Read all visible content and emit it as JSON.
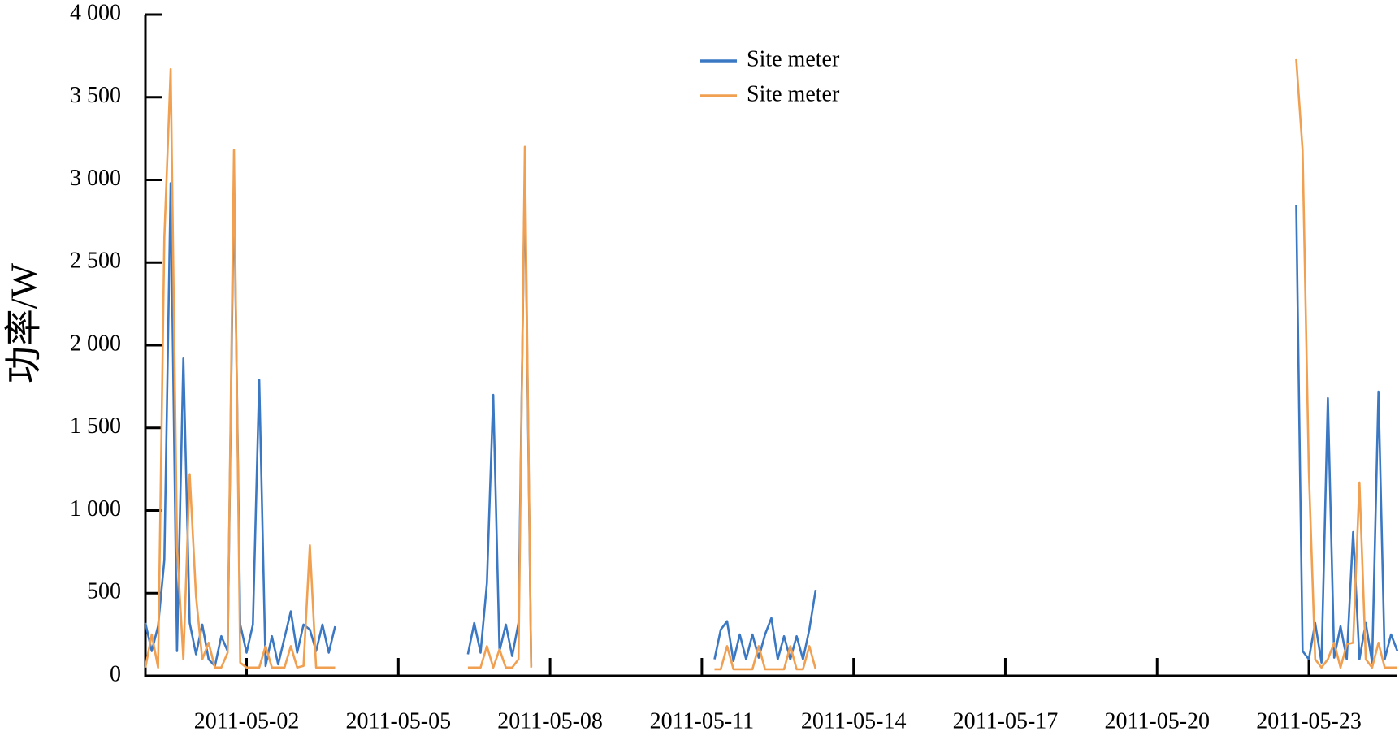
{
  "chart_data": {
    "type": "line",
    "y_label": "功率/W",
    "x": [
      "2011-04-30T00:00",
      "2011-04-30T03:00",
      "2011-04-30T06:00",
      "2011-04-30T09:00",
      "2011-04-30T12:00",
      "2011-04-30T15:00",
      "2011-04-30T18:00",
      "2011-04-30T21:00",
      "2011-05-01T00:00",
      "2011-05-01T03:00",
      "2011-05-01T06:00",
      "2011-05-01T09:00",
      "2011-05-01T12:00",
      "2011-05-01T15:00",
      "2011-05-01T18:00",
      "2011-05-01T21:00",
      "2011-05-02T00:00",
      "2011-05-02T03:00",
      "2011-05-02T06:00",
      "2011-05-02T09:00",
      "2011-05-02T12:00",
      "2011-05-02T15:00",
      "2011-05-02T18:00",
      "2011-05-02T21:00",
      "2011-05-03T00:00",
      "2011-05-03T03:00",
      "2011-05-03T06:00",
      "2011-05-03T09:00",
      "2011-05-03T12:00",
      "2011-05-03T15:00",
      "2011-05-03T18:00",
      "2011-05-05T00:00",
      "2011-05-06T09:00",
      "2011-05-06T12:00",
      "2011-05-06T15:00",
      "2011-05-06T18:00",
      "2011-05-06T21:00",
      "2011-05-07T00:00",
      "2011-05-07T03:00",
      "2011-05-07T06:00",
      "2011-05-07T09:00",
      "2011-05-07T12:00",
      "2011-05-07T15:00",
      "2011-05-09T12:00",
      "2011-05-11T06:00",
      "2011-05-11T09:00",
      "2011-05-11T12:00",
      "2011-05-11T15:00",
      "2011-05-11T18:00",
      "2011-05-11T21:00",
      "2011-05-12T00:00",
      "2011-05-12T03:00",
      "2011-05-12T06:00",
      "2011-05-12T09:00",
      "2011-05-12T12:00",
      "2011-05-12T15:00",
      "2011-05-12T18:00",
      "2011-05-12T21:00",
      "2011-05-13T00:00",
      "2011-05-13T03:00",
      "2011-05-13T06:00",
      "2011-05-18T00:00",
      "2011-05-22T18:00",
      "2011-05-22T21:00",
      "2011-05-23T00:00",
      "2011-05-23T03:00",
      "2011-05-23T06:00",
      "2011-05-23T09:00",
      "2011-05-23T12:00",
      "2011-05-23T15:00",
      "2011-05-23T18:00",
      "2011-05-23T21:00",
      "2011-05-24T00:00",
      "2011-05-24T03:00",
      "2011-05-24T06:00",
      "2011-05-24T09:00",
      "2011-05-24T12:00",
      "2011-05-24T15:00",
      "2011-05-24T18:00"
    ],
    "series": [
      {
        "name": "Site meter",
        "color": "#3b78c4",
        "values": [
          320,
          150,
          300,
          700,
          2980,
          150,
          1920,
          320,
          130,
          310,
          100,
          60,
          240,
          150,
          3000,
          310,
          140,
          310,
          1790,
          60,
          240,
          70,
          230,
          390,
          140,
          310,
          280,
          150,
          310,
          140,
          300,
          null,
          130,
          320,
          140,
          560,
          1700,
          150,
          310,
          120,
          320,
          3050,
          60,
          null,
          100,
          280,
          330,
          90,
          250,
          100,
          250,
          110,
          250,
          350,
          100,
          240,
          100,
          240,
          100,
          280,
          520,
          null,
          2850,
          150,
          100,
          320,
          80,
          1680,
          110,
          300,
          100,
          870,
          100,
          320,
          80,
          1720,
          100,
          250,
          150
        ]
      },
      {
        "name": "Site meter",
        "color": "#f0a050",
        "values": [
          50,
          250,
          50,
          2650,
          3670,
          780,
          100,
          1220,
          480,
          100,
          200,
          50,
          50,
          140,
          3180,
          80,
          50,
          50,
          50,
          180,
          50,
          50,
          50,
          180,
          50,
          60,
          790,
          50,
          50,
          50,
          50,
          null,
          50,
          50,
          50,
          180,
          50,
          160,
          50,
          50,
          100,
          3200,
          50,
          null,
          40,
          40,
          180,
          40,
          40,
          40,
          40,
          180,
          40,
          40,
          40,
          40,
          180,
          40,
          40,
          180,
          40,
          null,
          3730,
          3180,
          1240,
          100,
          50,
          100,
          200,
          50,
          190,
          200,
          1170,
          100,
          50,
          200,
          50,
          50,
          50
        ]
      }
    ],
    "xlim": [
      "2011-04-30T00:00",
      "2011-05-24T18:00"
    ],
    "xticks": [
      "2011-05-02",
      "2011-05-05",
      "2011-05-08",
      "2011-05-11",
      "2011-05-14",
      "2011-05-17",
      "2011-05-20",
      "2011-05-23"
    ],
    "ylim": [
      0,
      4000
    ],
    "yticks": [
      0,
      500,
      {
        "value": 1000,
        "label": "1 000"
      },
      {
        "value": 1500,
        "label": "1 500"
      },
      {
        "value": 2000,
        "label": "2 000"
      },
      {
        "value": 2500,
        "label": "2 500"
      },
      {
        "value": 3000,
        "label": "3 000"
      },
      {
        "value": 3500,
        "label": "3 500"
      },
      {
        "value": 4000,
        "label": "4 000"
      }
    ],
    "legend": "upper center"
  }
}
